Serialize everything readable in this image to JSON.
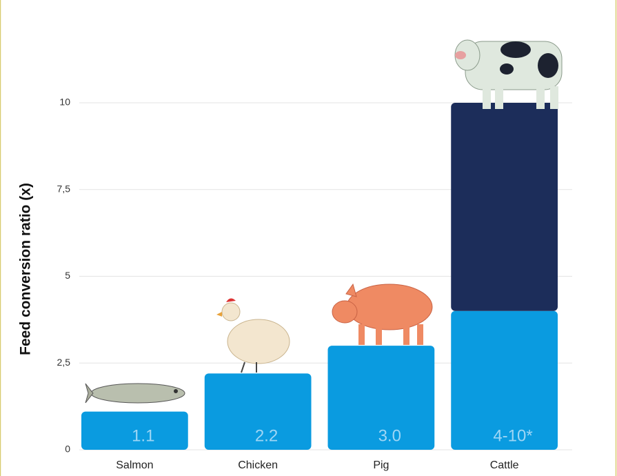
{
  "chart_data": {
    "type": "bar",
    "y_label": "Feed conversion ratio (x)",
    "categories": [
      "Salmon",
      "Chicken",
      "Pig",
      "Cattle"
    ],
    "series": [
      {
        "color": "#0a9be0",
        "values": [
          1.1,
          2.2,
          3.0,
          4
        ],
        "value_labels": [
          "1.1",
          "2.2",
          "3.0",
          "4-10*"
        ]
      },
      {
        "color": "#1c2d5a",
        "values": [
          null,
          null,
          null,
          6
        ]
      }
    ],
    "ylim": [
      0,
      10.2
    ],
    "yticks": [
      0,
      {
        "value": 2.5,
        "label": "2,5"
      },
      5,
      {
        "value": 7.5,
        "label": "7,5"
      },
      10
    ],
    "grid": true
  }
}
